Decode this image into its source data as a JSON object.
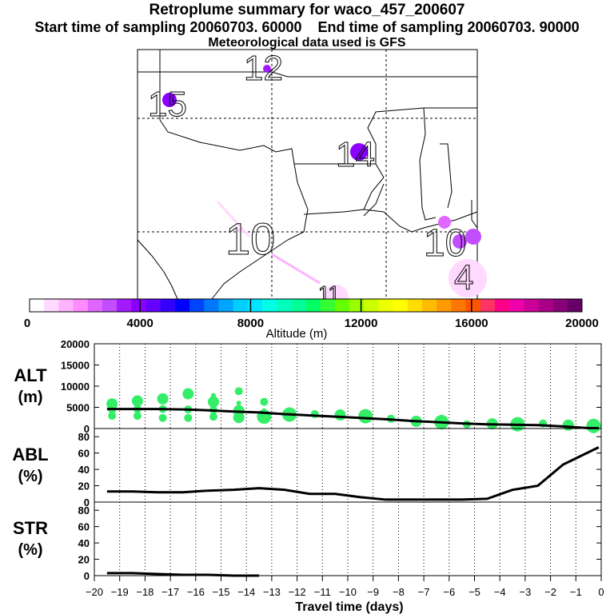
{
  "title": "Retroplume summary for waco_457_200607",
  "start_label": "Start time of sampling 20060703. 60000",
  "end_label": "End time of sampling 20060703. 90000",
  "met_label": "Meteorological data used is GFS",
  "colorbar": {
    "label": "Altitude (m)",
    "ticks": [
      "0",
      "4000",
      "8000",
      "12000",
      "16000",
      "20000"
    ],
    "colors": [
      "#ffffff",
      "#ffd9ff",
      "#ffb3ff",
      "#ff8cff",
      "#e066ff",
      "#c24dff",
      "#a31aff",
      "#8c00ff",
      "#6600ff",
      "#3300ff",
      "#0000ff",
      "#0044ff",
      "#0077ff",
      "#00a5ff",
      "#00cfff",
      "#00e5ff",
      "#00ffe6",
      "#00ffbf",
      "#00ff99",
      "#00ff66",
      "#33ff33",
      "#66ff00",
      "#99ff00",
      "#ccff00",
      "#eeff00",
      "#ffff00",
      "#ffdd00",
      "#ffbb00",
      "#ff9900",
      "#ff7700",
      "#ff5500",
      "#ff3366",
      "#ff0088",
      "#ee00aa",
      "#cc0099",
      "#aa0088",
      "#880077",
      "#660066"
    ]
  },
  "map_labels": [
    "12",
    "15",
    "14",
    "10",
    "10",
    "4",
    "11"
  ],
  "chart_data": [
    {
      "type": "scatter",
      "id": "alt",
      "ylabel": "ALT",
      "yunit": "(m)",
      "ylim": [
        0,
        20000
      ],
      "yticks": [
        "0",
        "5000",
        "10000",
        "15000",
        "20000"
      ],
      "line_x": [
        -19.5,
        -18.5,
        -17.5,
        -16.5,
        -15.5,
        -14.5,
        -13.5,
        -12.5,
        -11.5,
        -10.5,
        -9.5,
        -8.5,
        -7.5,
        -6.5,
        -5.5,
        -4.5,
        -3.5,
        -2.5,
        -1.5,
        -0.5,
        -0.1
      ],
      "line_y": [
        4600,
        4600,
        4600,
        4500,
        4300,
        4000,
        3800,
        3400,
        3100,
        2800,
        2500,
        2200,
        1800,
        1500,
        1200,
        1000,
        900,
        800,
        500,
        100,
        100
      ],
      "points": [
        [
          -19.3,
          3000
        ],
        [
          -19.3,
          4500
        ],
        [
          -19.3,
          5800
        ],
        [
          -18.3,
          3000
        ],
        [
          -18.3,
          4600
        ],
        [
          -18.3,
          6500
        ],
        [
          -17.3,
          2500
        ],
        [
          -17.3,
          4600
        ],
        [
          -17.3,
          7000
        ],
        [
          -16.3,
          2500
        ],
        [
          -16.3,
          4500
        ],
        [
          -16.3,
          8200
        ],
        [
          -15.3,
          2800
        ],
        [
          -15.3,
          4400
        ],
        [
          -15.3,
          6300
        ],
        [
          -15.3,
          7800
        ],
        [
          -14.3,
          2600
        ],
        [
          -14.3,
          4200
        ],
        [
          -14.3,
          6000
        ],
        [
          -14.3,
          8800
        ],
        [
          -13.3,
          2800
        ],
        [
          -13.3,
          4200
        ],
        [
          -13.3,
          6300
        ],
        [
          -12.3,
          3300
        ],
        [
          -11.3,
          3400
        ],
        [
          -10.3,
          3200
        ],
        [
          -9.3,
          2900
        ],
        [
          -8.3,
          2300
        ],
        [
          -7.3,
          1700
        ],
        [
          -6.3,
          1500
        ],
        [
          -5.3,
          1000
        ],
        [
          -4.3,
          1100
        ],
        [
          -3.3,
          1000
        ],
        [
          -2.3,
          1200
        ],
        [
          -1.3,
          800
        ],
        [
          -0.3,
          600
        ]
      ]
    },
    {
      "type": "line",
      "id": "abl",
      "ylabel": "ABL",
      "yunit": "(%)",
      "ylim": [
        0,
        90
      ],
      "yticks": [
        "0",
        "20",
        "40",
        "60",
        "80"
      ],
      "x": [
        -19.5,
        -18.5,
        -17.5,
        -16.5,
        -15.5,
        -14.5,
        -13.5,
        -12.5,
        -11.5,
        -10.5,
        -9.5,
        -8.5,
        -7.5,
        -6.5,
        -5.5,
        -4.5,
        -3.5,
        -2.5,
        -1.5,
        -0.5,
        -0.1
      ],
      "values": [
        13,
        13,
        12,
        12,
        14,
        15,
        17,
        15,
        10,
        10,
        6,
        3,
        3,
        3,
        3,
        4,
        15,
        20,
        46,
        61,
        67
      ]
    },
    {
      "type": "line",
      "id": "str",
      "ylabel": "STR",
      "yunit": "(%)",
      "ylim": [
        0,
        90
      ],
      "yticks": [
        "0",
        "20",
        "40",
        "60",
        "80"
      ],
      "x": [
        -19.5,
        -18.5,
        -17.5,
        -16.5,
        -15.5,
        -14.5,
        -13.5
      ],
      "values": [
        3,
        3,
        2,
        1,
        1,
        0,
        0
      ]
    }
  ],
  "x_axis": {
    "xlim": [
      -20,
      0
    ],
    "xticks": [
      "−20",
      "−19",
      "−18",
      "−17",
      "−16",
      "−15",
      "−14",
      "−13",
      "−12",
      "−11",
      "−10",
      "−9",
      "−8",
      "−7",
      "−6",
      "−5",
      "−4",
      "−3",
      "−2",
      "−1",
      "0"
    ],
    "xlabel": "Travel time (days)"
  }
}
